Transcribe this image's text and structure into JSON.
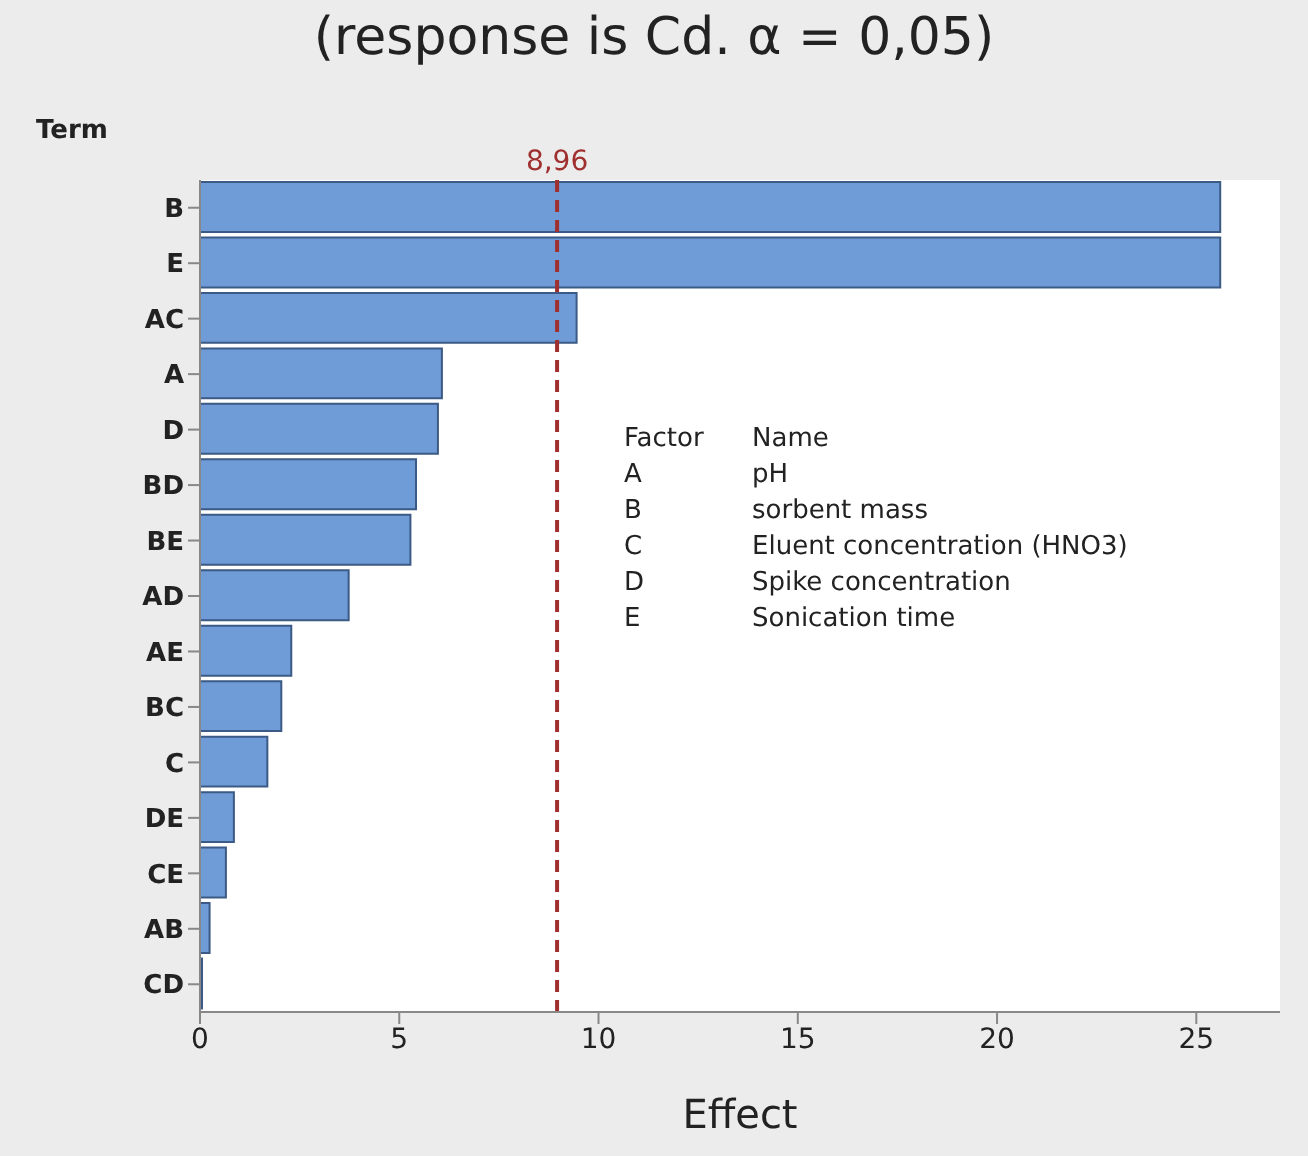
{
  "chart_data": {
    "type": "bar",
    "orientation": "horizontal",
    "title": "(response is Cd. α = 0,05)",
    "ylabel": "Term",
    "xlabel": "Effect",
    "categories": [
      "B",
      "E",
      "AC",
      "A",
      "D",
      "BD",
      "BE",
      "AD",
      "AE",
      "BC",
      "C",
      "DE",
      "CE",
      "AB",
      "CD"
    ],
    "values": [
      25.6,
      25.6,
      9.45,
      6.07,
      5.97,
      5.42,
      5.28,
      3.73,
      2.29,
      2.04,
      1.69,
      0.85,
      0.65,
      0.24,
      0.05
    ],
    "color": "#6f9bd6",
    "xlim": [
      0,
      27.1
    ],
    "xticks": [
      0,
      5,
      10,
      15,
      20,
      25
    ],
    "ref_lines": [
      {
        "axis": "x",
        "value": 8.96,
        "label": "8,96",
        "color": "#a03030",
        "line_style": "dashed"
      }
    ],
    "annotations": [
      "Factor",
      "Name",
      "A",
      "pH",
      "B",
      "sorbent mass",
      "C",
      "Eluent concentration (HNO3)",
      "D",
      "Spike concentration",
      "E",
      "Sonication time"
    ],
    "grid": false
  }
}
